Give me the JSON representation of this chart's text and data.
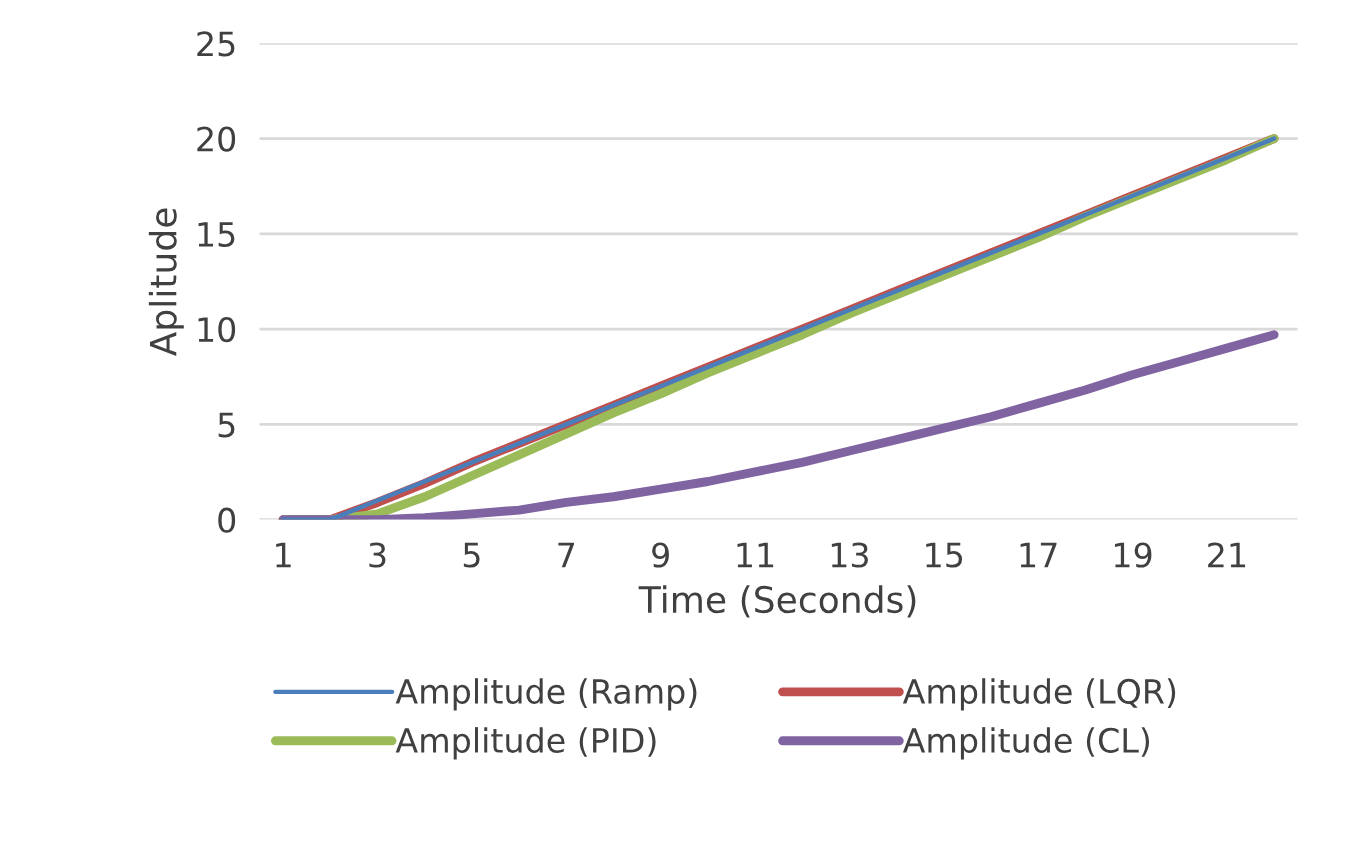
{
  "chart_data": {
    "type": "line",
    "xlabel": "Time (Seconds)",
    "ylabel": "Aplitude",
    "categories": [
      "1",
      null,
      "3",
      null,
      "5",
      null,
      "7",
      null,
      "9",
      null,
      "11",
      null,
      "13",
      null,
      "15",
      null,
      "17",
      null,
      "19",
      null,
      "21",
      null
    ],
    "series": [
      {
        "name": "Amplitude (Ramp)",
        "color": "#4a7ebb",
        "values": [
          0,
          0,
          1,
          2,
          3,
          4,
          5,
          6,
          7,
          8,
          9,
          10,
          11,
          12,
          13,
          14,
          15,
          16,
          17,
          18,
          19,
          20
        ]
      },
      {
        "name": "Amplitude (LQR)",
        "color": "#c0504d",
        "values": [
          0,
          0,
          0.9,
          1.9,
          3,
          4,
          5,
          6,
          7,
          8,
          9,
          10,
          11,
          12,
          13,
          14,
          15,
          16,
          17,
          18,
          19,
          20
        ]
      },
      {
        "name": "Amplitude (PID)",
        "color": "#9bbb59",
        "values": [
          0,
          0,
          0.3,
          1.2,
          2.3,
          3.4,
          4.5,
          5.6,
          6.6,
          7.7,
          8.7,
          9.7,
          10.8,
          11.8,
          12.8,
          13.8,
          14.8,
          15.9,
          16.9,
          17.9,
          18.9,
          20
        ]
      },
      {
        "name": "Amplitude (CL)",
        "color": "#8064a2",
        "values": [
          0,
          0,
          0,
          0.1,
          0.3,
          0.5,
          0.9,
          1.2,
          1.6,
          2.0,
          2.5,
          3.0,
          3.6,
          4.2,
          4.8,
          5.4,
          6.1,
          6.8,
          7.6,
          8.3,
          9.0,
          9.7
        ]
      }
    ],
    "ylim": [
      0,
      25
    ],
    "yticks": [
      0,
      5,
      10,
      15,
      20,
      25
    ],
    "grid": "y",
    "legend": "bottom",
    "marker": "none",
    "line_style": "solid"
  }
}
